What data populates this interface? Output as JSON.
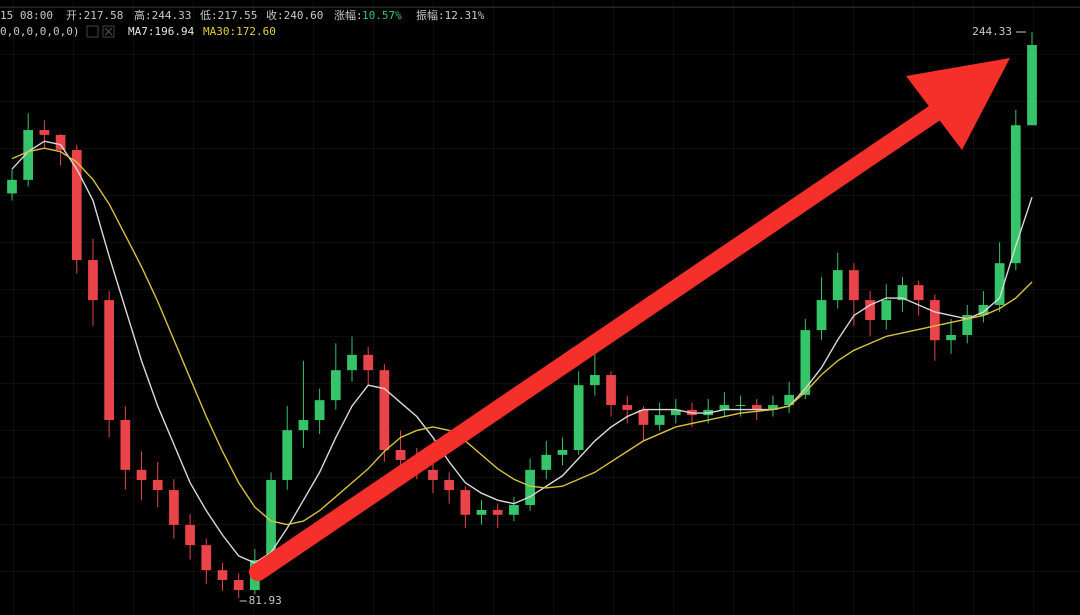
{
  "chart_data": {
    "type": "candlestick",
    "header": {
      "time": "15 08:00",
      "open": "开:217.58",
      "high": "高:244.33",
      "low": "低:217.55",
      "close": "收:240.60",
      "change_label": "涨幅:",
      "change": "10.57%",
      "amplitude": "振幅:12.31%",
      "params": "0,0,0,0,0,0)",
      "ma7": "MA7:196.94",
      "ma30": "MA30:172.60"
    },
    "max_label": "244.33",
    "min_label": "81.93",
    "up_color": "#35c46a",
    "down_color": "#e8444a",
    "open": [
      198,
      201.9,
      216.2,
      214.8,
      210.5,
      178.9,
      167.4,
      133,
      118.7,
      115.8,
      112.9,
      102.9,
      97.1,
      89.9,
      87.1,
      84.2,
      92.8,
      115.8,
      130.1,
      133,
      138.7,
      147.3,
      151.7,
      147.3,
      124.4,
      121.5,
      118.7,
      115.8,
      112.9,
      105.8,
      107.2,
      105.8,
      108.6,
      118.7,
      123,
      124.4,
      143,
      145.9,
      137.3,
      135.9,
      131.6,
      134.4,
      135.9,
      134.4,
      135.9,
      137.3,
      137.3,
      135.9,
      137.3,
      140.2,
      158.8,
      167.4,
      176,
      167.4,
      161.7,
      167.4,
      171.7,
      167.4,
      155.9,
      157.4,
      163.1,
      166,
      178,
      217.58
    ],
    "high": [
      205,
      221,
      219,
      215,
      212,
      185,
      170,
      137,
      124,
      121,
      116,
      106,
      99,
      92,
      89,
      96,
      118,
      137,
      150,
      142,
      155,
      157,
      154,
      149,
      130,
      125,
      121,
      118,
      114,
      110,
      109,
      111,
      122,
      127,
      128,
      147,
      155,
      147,
      140,
      137,
      138,
      139,
      138,
      139,
      141,
      140,
      139,
      140,
      144,
      162,
      174,
      181,
      178,
      170,
      172,
      174,
      173,
      169,
      162,
      166,
      170,
      184,
      222,
      244.33
    ],
    "low": [
      196,
      200,
      211,
      206,
      175,
      160,
      128,
      113,
      110,
      108,
      99,
      93,
      86,
      84,
      81.93,
      83,
      91,
      113,
      125,
      129,
      136,
      144,
      143,
      121,
      118,
      116,
      112,
      109,
      102,
      103,
      102,
      104,
      107,
      116,
      120,
      123,
      140,
      134,
      132,
      127,
      130,
      132,
      131,
      132,
      134,
      134,
      133,
      134,
      135,
      139,
      156,
      165,
      160,
      157,
      159,
      164,
      163,
      150,
      152,
      155,
      161,
      164,
      176,
      217.55
    ],
    "close": [
      201.9,
      216.2,
      214.8,
      210.5,
      178.9,
      167.4,
      133,
      118.7,
      115.8,
      112.9,
      102.9,
      97.1,
      89.9,
      87.1,
      84.2,
      92.8,
      115.8,
      130.1,
      133,
      138.7,
      147.3,
      151.7,
      147.3,
      124.4,
      121.5,
      118.7,
      115.8,
      112.9,
      105.8,
      107.2,
      105.8,
      108.6,
      118.7,
      123,
      124.4,
      143,
      145.9,
      137.3,
      135.9,
      131.6,
      134.4,
      135.9,
      134.4,
      135.9,
      137.3,
      137.3,
      135.9,
      137.3,
      140.2,
      158.8,
      167.4,
      176,
      167.4,
      161.7,
      167.4,
      171.7,
      167.4,
      155.9,
      157.4,
      163.1,
      166,
      178,
      217.58,
      240.6
    ],
    "series": [
      {
        "name": "MA7",
        "color": "#d8d8d8",
        "values": [
          205,
          210,
          213,
          212,
          205,
          196,
          180,
          165,
          150,
          137,
          126,
          115,
          107,
          100,
          94,
          92,
          95,
          102,
          110,
          118,
          128,
          137,
          143,
          142,
          138,
          134,
          128,
          121,
          115,
          112,
          110,
          109,
          111,
          114,
          117,
          122,
          127,
          131,
          134,
          136,
          136,
          136,
          135,
          135,
          136,
          136,
          136,
          136,
          137,
          142,
          148,
          156,
          163,
          166,
          168,
          168,
          166,
          164,
          163,
          162,
          164,
          168,
          183,
          196.94
        ]
      },
      {
        "name": "MA30",
        "color": "#d9c23c",
        "values": [
          208,
          210,
          211,
          210,
          207,
          202,
          195,
          186,
          177,
          167,
          156,
          145,
          134,
          124,
          115,
          108,
          104,
          103,
          104,
          107,
          111,
          115,
          119,
          124,
          128,
          130,
          131,
          130,
          127,
          123,
          119,
          116,
          114,
          113.5,
          114,
          116,
          118,
          121,
          124,
          127,
          129,
          131,
          132,
          133,
          134,
          135,
          135.5,
          136,
          137,
          141,
          146,
          150,
          153,
          155,
          157,
          158,
          159,
          160,
          161,
          162,
          163,
          165,
          168,
          172.6
        ]
      }
    ]
  }
}
